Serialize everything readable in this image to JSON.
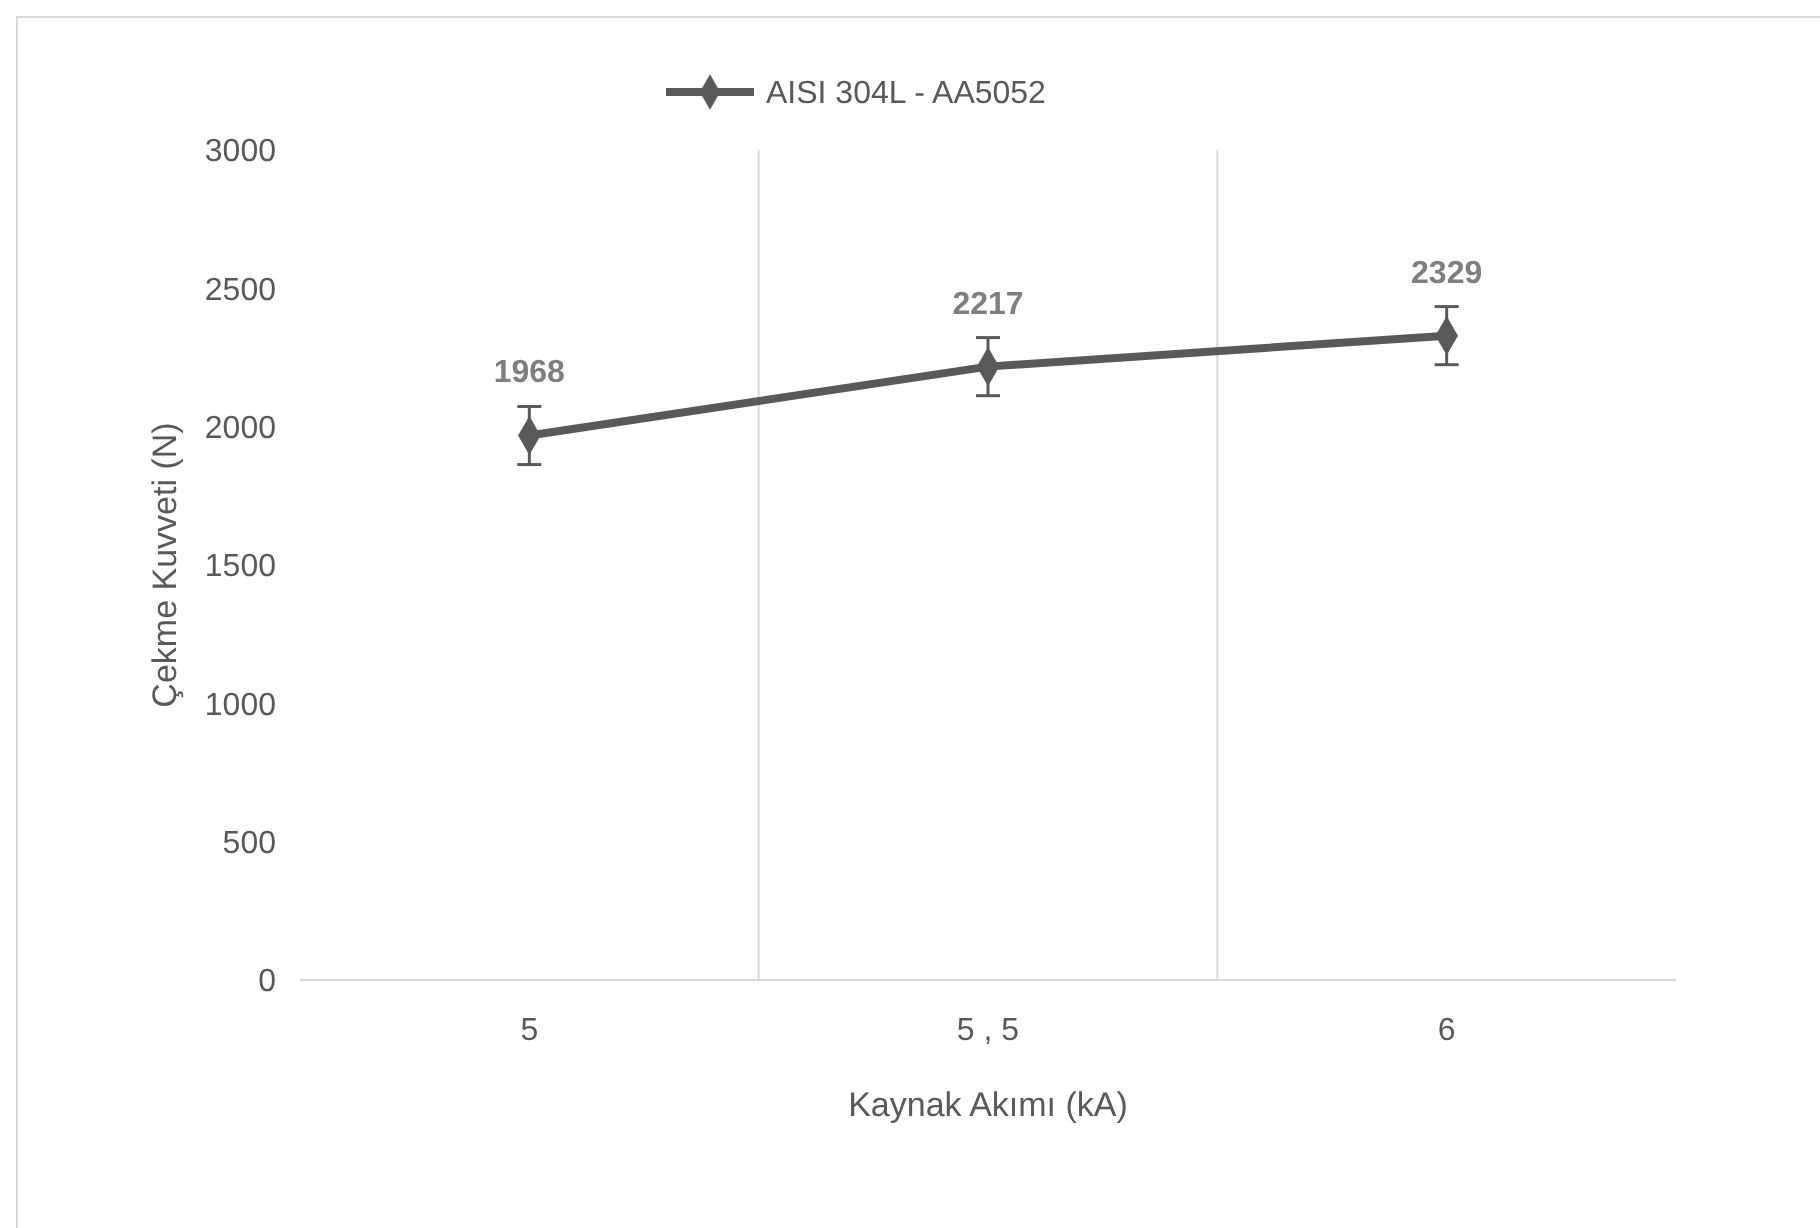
{
  "chart_data": {
    "type": "line",
    "xlabel": "Kaynak Akımı (kA)",
    "ylabel": "Çekme Kuvveti (N)",
    "categories": [
      "5",
      "5 , 5",
      "6"
    ],
    "series": [
      {
        "name": "AISI 304L - AA5052",
        "color": "#595959",
        "values": [
          1968,
          2217,
          2329
        ],
        "errors": [
          105,
          105,
          105
        ]
      }
    ],
    "ylim": [
      0,
      3000
    ],
    "yticks": [
      0,
      500,
      1000,
      1500,
      2000,
      2500,
      3000
    ],
    "grid": "x",
    "legend": "top",
    "marker": "diamond",
    "line_style": "solid",
    "data_labels": true
  }
}
